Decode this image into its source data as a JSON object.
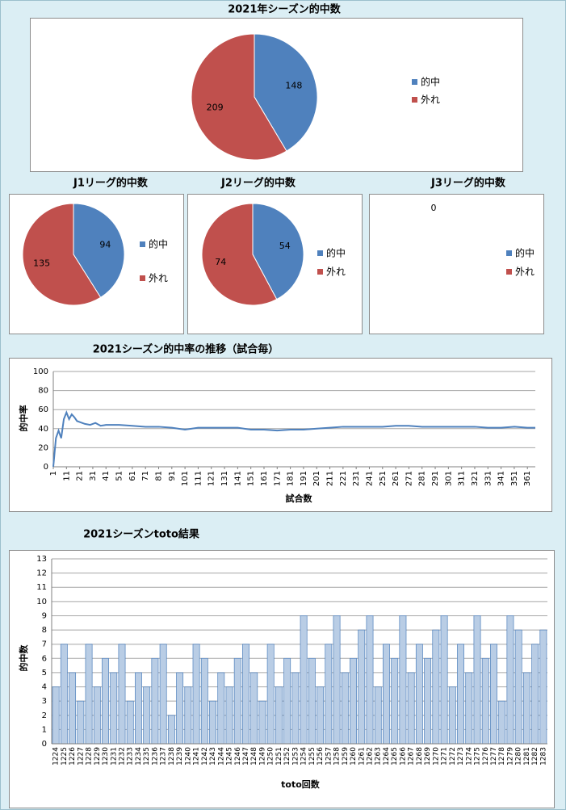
{
  "chart_data": [
    {
      "type": "pie",
      "title": "2021年シーズン的中数",
      "categories": [
        "的中",
        "外れ"
      ],
      "values": [
        148,
        209
      ],
      "colors": [
        "#4f81bd",
        "#c0504d"
      ]
    },
    {
      "type": "pie",
      "title": "J1リーグ的中数",
      "categories": [
        "的中",
        "外れ"
      ],
      "values": [
        94,
        135
      ],
      "colors": [
        "#4f81bd",
        "#c0504d"
      ]
    },
    {
      "type": "pie",
      "title": "J2リーグ的中数",
      "categories": [
        "的中",
        "外れ"
      ],
      "values": [
        54,
        74
      ],
      "colors": [
        "#4f81bd",
        "#c0504d"
      ]
    },
    {
      "type": "pie",
      "title": "J3リーグ的中数",
      "categories": [
        "的中",
        "外れ"
      ],
      "values": [
        0,
        null
      ],
      "colors": [
        "#4f81bd",
        "#c0504d"
      ]
    },
    {
      "type": "line",
      "title": "2021シーズン的中率の推移（試合毎）",
      "ylabel": "的中率",
      "xlabel": "試合数",
      "color": "#4f81bd",
      "x": [
        1,
        3,
        5,
        7,
        9,
        11,
        13,
        15,
        17,
        19,
        21,
        25,
        29,
        33,
        37,
        41,
        51,
        61,
        71,
        81,
        91,
        101,
        111,
        121,
        131,
        141,
        151,
        161,
        171,
        181,
        191,
        201,
        211,
        221,
        231,
        241,
        251,
        261,
        271,
        281,
        291,
        301,
        311,
        321,
        331,
        341,
        351,
        361,
        367
      ],
      "values": [
        0,
        30,
        38,
        30,
        50,
        57,
        50,
        55,
        52,
        48,
        47,
        45,
        44,
        46,
        43,
        44,
        44,
        43,
        42,
        42,
        41,
        39,
        41,
        41,
        41,
        41,
        39,
        39,
        38,
        39,
        39,
        40,
        41,
        42,
        42,
        42,
        42,
        43,
        43,
        42,
        42,
        42,
        42,
        42,
        41,
        41,
        42,
        41,
        41
      ],
      "xlim": [
        1,
        367
      ],
      "xticks": [
        1,
        11,
        21,
        31,
        41,
        51,
        61,
        71,
        81,
        91,
        101,
        111,
        121,
        131,
        141,
        151,
        161,
        171,
        181,
        191,
        201,
        211,
        221,
        231,
        241,
        251,
        261,
        271,
        281,
        291,
        301,
        311,
        321,
        331,
        341,
        351,
        361
      ],
      "ylim": [
        0,
        100
      ],
      "yticks": [
        0,
        20,
        40,
        60,
        80,
        100
      ],
      "grid": true
    },
    {
      "type": "bar",
      "title": "2021シーズンtoto結果",
      "ylabel": "的中数",
      "xlabel": "toto回数",
      "color": "#b9cde5",
      "edge_color": "#4f81bd",
      "categories": [
        "1224",
        "1225",
        "1226",
        "1227",
        "1228",
        "1229",
        "1230",
        "1231",
        "1232",
        "1233",
        "1234",
        "1235",
        "1236",
        "1237",
        "1238",
        "1239",
        "1240",
        "1241",
        "1242",
        "1243",
        "1244",
        "1245",
        "1246",
        "1247",
        "1248",
        "1249",
        "1250",
        "1251",
        "1252",
        "1253",
        "1254",
        "1255",
        "1256",
        "1257",
        "1258",
        "1259",
        "1260",
        "1261",
        "1262",
        "1263",
        "1264",
        "1265",
        "1266",
        "1267",
        "1268",
        "1269",
        "1270",
        "1271",
        "1272",
        "1273",
        "1274",
        "1275",
        "1276",
        "1277",
        "1278",
        "1279",
        "1280",
        "1281",
        "1282",
        "1283"
      ],
      "values": [
        4,
        7,
        5,
        3,
        7,
        4,
        6,
        5,
        7,
        3,
        5,
        4,
        6,
        7,
        2,
        5,
        4,
        7,
        6,
        3,
        5,
        4,
        6,
        7,
        5,
        3,
        7,
        4,
        6,
        5,
        9,
        6,
        4,
        7,
        9,
        5,
        6,
        8,
        9,
        4,
        7,
        6,
        9,
        5,
        7,
        6,
        8,
        9,
        4,
        7,
        5,
        9,
        6,
        7,
        3,
        9,
        8,
        5,
        7,
        8
      ],
      "ylim": [
        0,
        13
      ],
      "yticks": [
        0,
        1,
        2,
        3,
        4,
        5,
        6,
        7,
        8,
        9,
        10,
        11,
        12,
        13
      ],
      "grid": true
    }
  ]
}
